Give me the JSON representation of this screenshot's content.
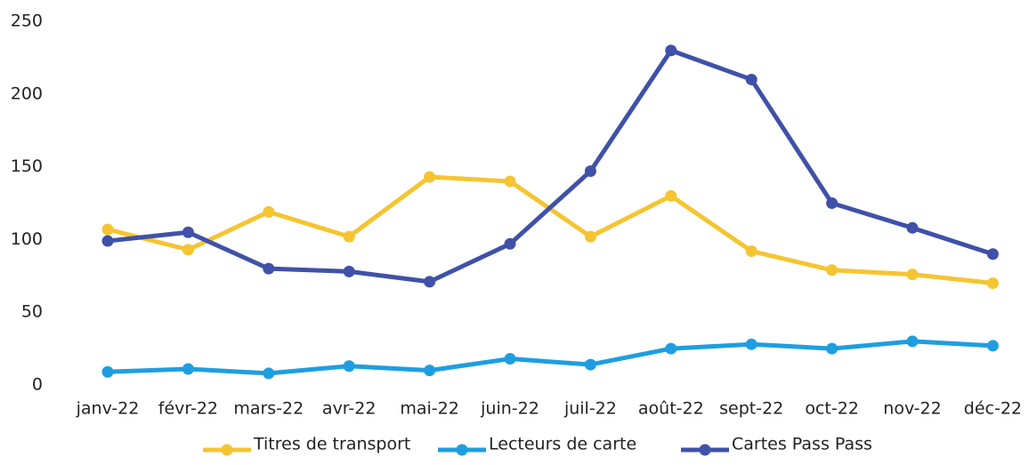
{
  "chart_data": {
    "type": "line",
    "categories": [
      "janv-22",
      "févr-22",
      "mars-22",
      "avr-22",
      "mai-22",
      "juin-22",
      "juil-22",
      "août-22",
      "sept-22",
      "oct-22",
      "nov-22",
      "déc-22"
    ],
    "series": [
      {
        "name": "Titres de transport",
        "color": "#f5c431",
        "values": [
          107,
          93,
          119,
          102,
          143,
          140,
          102,
          130,
          92,
          79,
          76,
          70
        ]
      },
      {
        "name": "Lecteurs de carte",
        "color": "#1e9ee0",
        "values": [
          9,
          11,
          8,
          13,
          10,
          18,
          14,
          25,
          28,
          25,
          30,
          27
        ]
      },
      {
        "name": "Cartes Pass Pass",
        "color": "#3f51a8",
        "values": [
          99,
          105,
          80,
          78,
          71,
          97,
          147,
          230,
          210,
          125,
          108,
          90
        ]
      }
    ],
    "ylim": [
      0,
      250
    ],
    "yticks": [
      0,
      50,
      100,
      150,
      200,
      250
    ],
    "grid": false,
    "legend": "bottom"
  }
}
